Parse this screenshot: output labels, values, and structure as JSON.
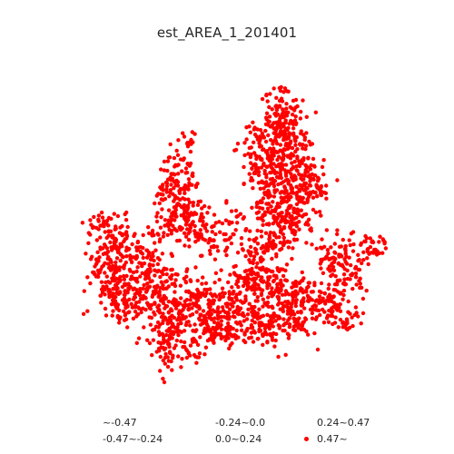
{
  "map": {
    "title": "est_AREA_1_201401",
    "point_color": "#ff0000",
    "background": "#ffffff",
    "point_count_visible": "dense (about 1500 estimated points)"
  },
  "legend": {
    "entries": [
      {
        "label": "~-0.47",
        "marker": "none"
      },
      {
        "label": "-0.47~-0.24",
        "marker": "none"
      },
      {
        "label": "-0.24~0.0",
        "marker": "none"
      },
      {
        "label": "0.0~0.24",
        "marker": "none"
      },
      {
        "label": "0.24~0.47",
        "marker": "none"
      },
      {
        "label": "0.47~",
        "marker": "red-dot",
        "color": "#ff0000"
      }
    ]
  }
}
